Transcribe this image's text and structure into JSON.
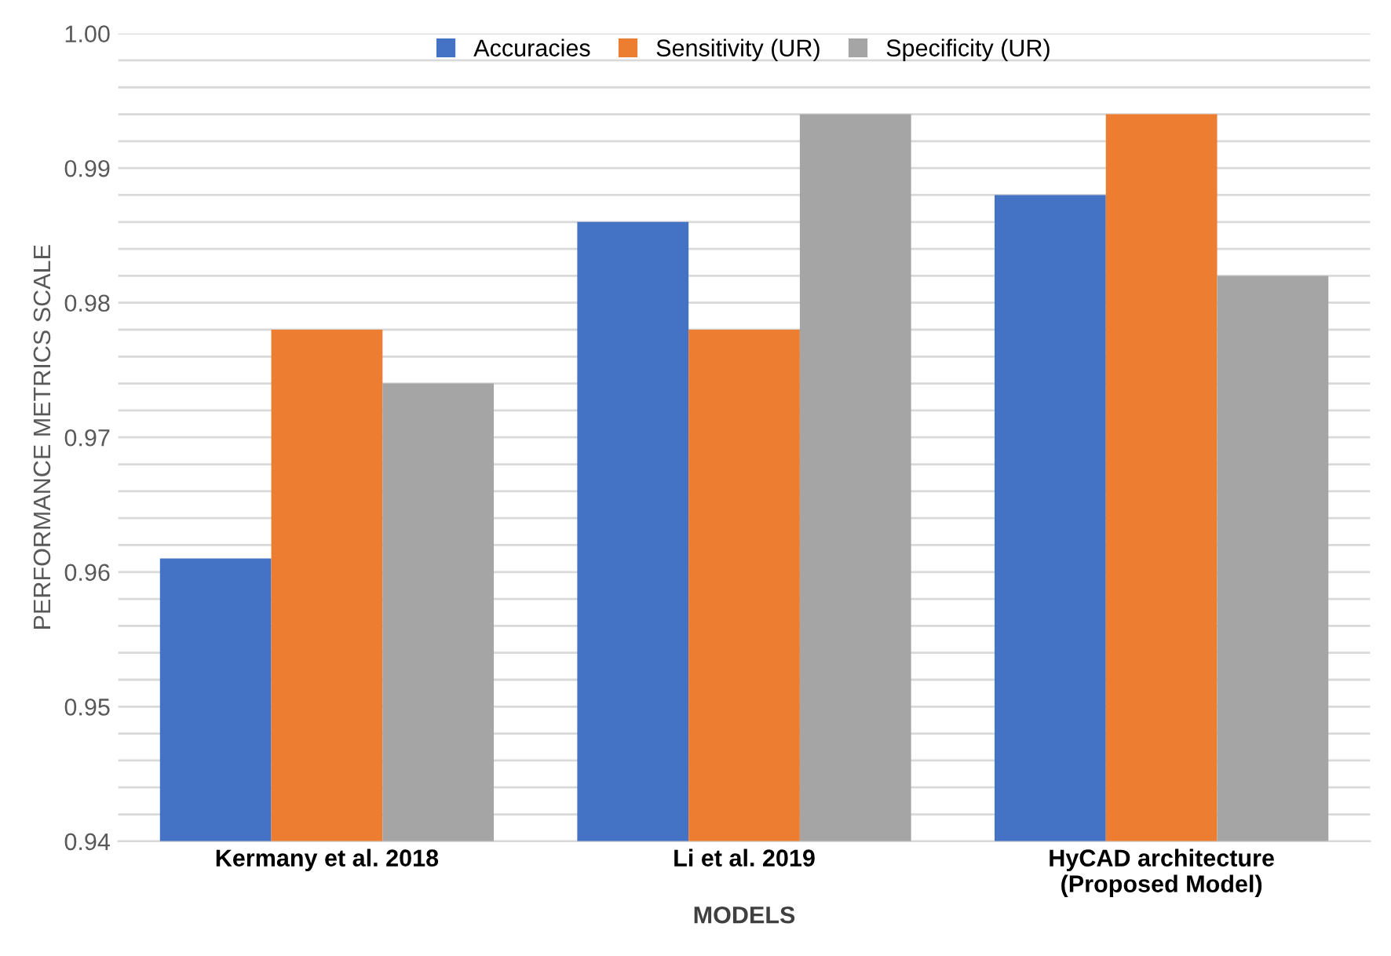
{
  "chart_data": {
    "type": "bar",
    "categories": [
      "Kermany et al. 2018",
      "Li et al. 2019",
      "HyCAD architecture\n(Proposed Model)"
    ],
    "series": [
      {
        "name": "Accuracies",
        "color": "#4472c4",
        "values": [
          0.961,
          0.986,
          0.988
        ]
      },
      {
        "name": "Sensitivity (UR)",
        "color": "#ed7d31",
        "values": [
          0.978,
          0.978,
          0.994
        ]
      },
      {
        "name": "Specificity (UR)",
        "color": "#a5a5a5",
        "values": [
          0.974,
          0.994,
          0.982
        ]
      }
    ],
    "xlabel": "MODELS",
    "ylabel": "PERFORMANCE METRICS SCALE",
    "ylim": [
      0.94,
      1.0
    ],
    "yticks": [
      {
        "value": 0.94,
        "label": "0.94"
      },
      {
        "value": 0.942,
        "label": null
      },
      {
        "value": 0.944,
        "label": null
      },
      {
        "value": 0.946,
        "label": null
      },
      {
        "value": 0.948,
        "label": null
      },
      {
        "value": 0.95,
        "label": "0.95"
      },
      {
        "value": 0.952,
        "label": null
      },
      {
        "value": 0.954,
        "label": null
      },
      {
        "value": 0.956,
        "label": null
      },
      {
        "value": 0.958,
        "label": null
      },
      {
        "value": 0.96,
        "label": "0.96"
      },
      {
        "value": 0.962,
        "label": null
      },
      {
        "value": 0.964,
        "label": null
      },
      {
        "value": 0.966,
        "label": null
      },
      {
        "value": 0.968,
        "label": null
      },
      {
        "value": 0.97,
        "label": "0.97"
      },
      {
        "value": 0.972,
        "label": null
      },
      {
        "value": 0.974,
        "label": null
      },
      {
        "value": 0.976,
        "label": null
      },
      {
        "value": 0.978,
        "label": null
      },
      {
        "value": 0.98,
        "label": "0.98"
      },
      {
        "value": 0.982,
        "label": null
      },
      {
        "value": 0.984,
        "label": null
      },
      {
        "value": 0.986,
        "label": null
      },
      {
        "value": 0.988,
        "label": null
      },
      {
        "value": 0.99,
        "label": "0.99"
      },
      {
        "value": 0.992,
        "label": null
      },
      {
        "value": 0.994,
        "label": null
      },
      {
        "value": 0.996,
        "label": null
      },
      {
        "value": 0.998,
        "label": null
      },
      {
        "value": 1.0,
        "label": "1.00"
      }
    ],
    "grid": "y",
    "legend": "top"
  }
}
